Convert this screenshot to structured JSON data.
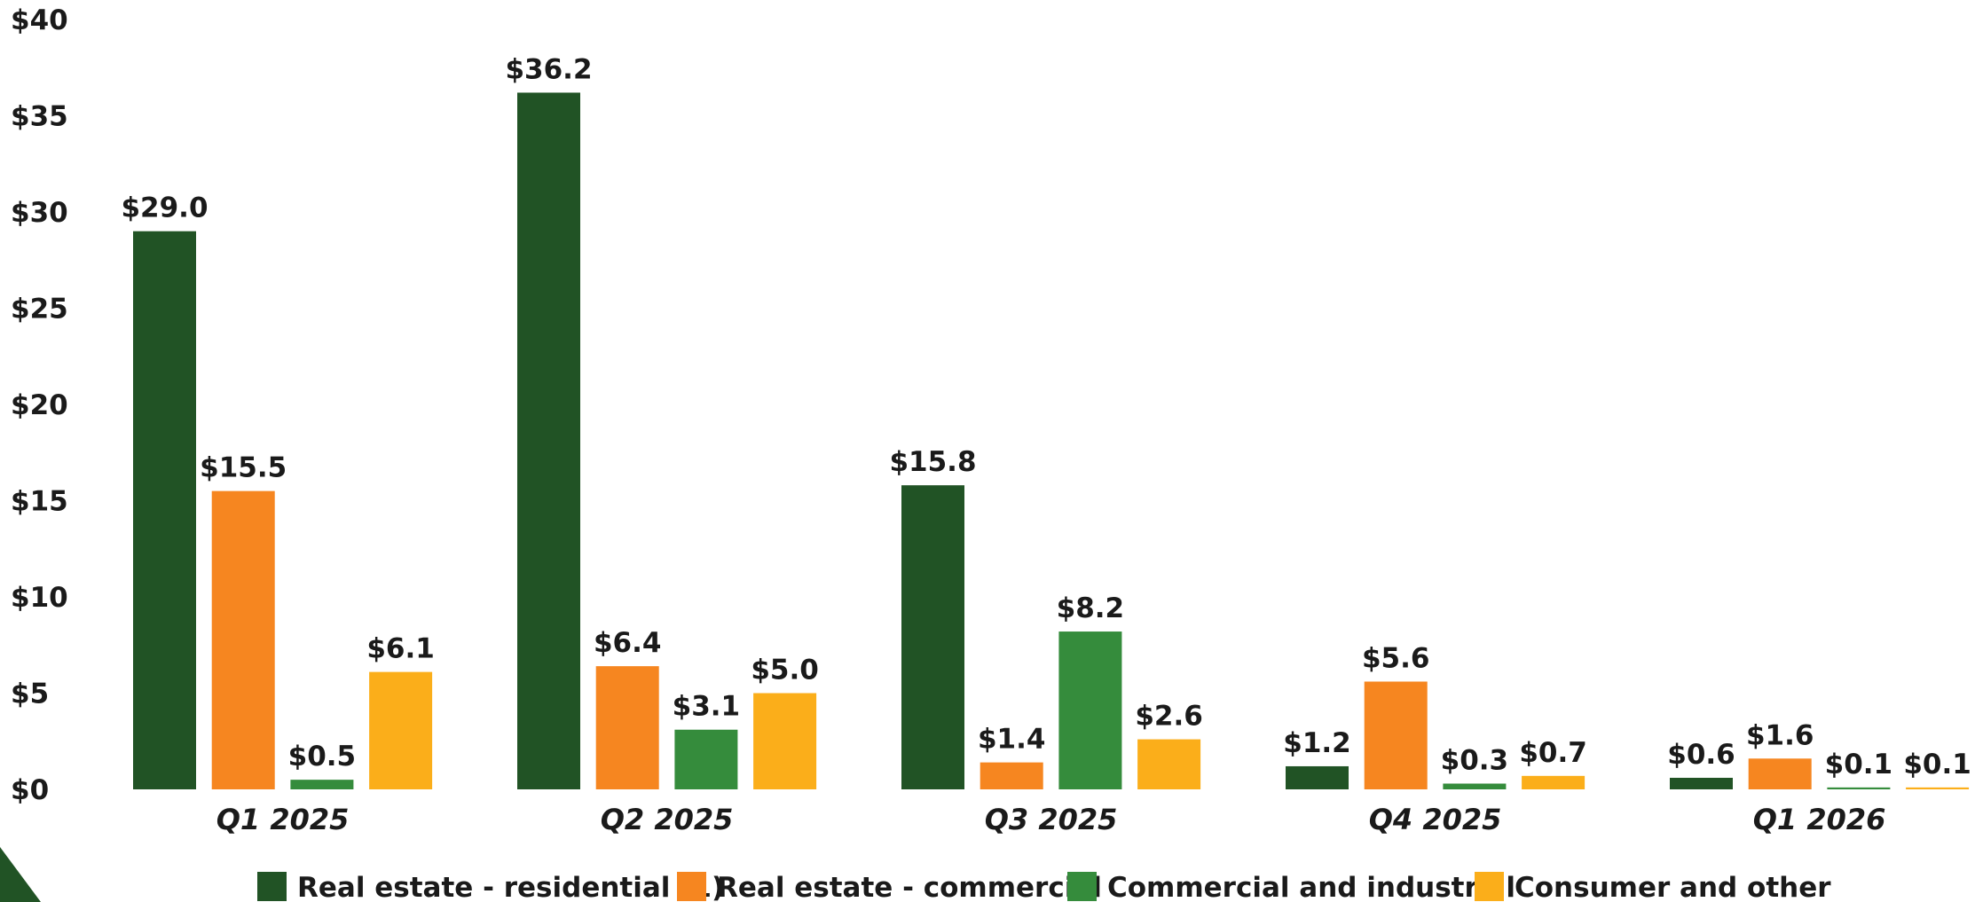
{
  "chart_data": {
    "type": "bar",
    "categories": [
      "Q1 2025",
      "Q2 2025",
      "Q3 2025",
      "Q4 2025",
      "Q1 2026"
    ],
    "series": [
      {
        "name": "Real estate - residential (1)",
        "color": "#215325",
        "values": [
          29.0,
          36.2,
          15.8,
          1.2,
          0.6
        ],
        "labels": [
          "$29.0",
          "$36.2",
          "$15.8",
          "$1.2",
          "$0.6"
        ]
      },
      {
        "name": "Real estate - commercial",
        "color": "#f68620",
        "values": [
          15.5,
          6.4,
          1.4,
          5.6,
          1.6
        ],
        "labels": [
          "$15.5",
          "$6.4",
          "$1.4",
          "$5.6",
          "$1.6"
        ]
      },
      {
        "name": "Commercial and industrial",
        "color": "#358c3c",
        "values": [
          0.5,
          3.1,
          8.2,
          0.3,
          0.1
        ],
        "labels": [
          "$0.5",
          "$3.1",
          "$8.2",
          "$0.3",
          "$0.1"
        ]
      },
      {
        "name": "Consumer and other",
        "color": "#fbae1a",
        "values": [
          6.1,
          5.0,
          2.6,
          0.7,
          0.1
        ],
        "labels": [
          "$6.1",
          "$5.0",
          "$2.6",
          "$0.7",
          "$0.1"
        ]
      }
    ],
    "ylim": [
      0,
      40
    ],
    "yticks": [
      0,
      5,
      10,
      15,
      20,
      25,
      30,
      35,
      40
    ],
    "ytick_labels": [
      "$0",
      "$5",
      "$10",
      "$15",
      "$20",
      "$25",
      "$30",
      "$35",
      "$40"
    ],
    "grid": false,
    "legend_position": "bottom",
    "title": "",
    "xlabel": "",
    "ylabel": "",
    "corner_decoration_color": "#215325"
  }
}
